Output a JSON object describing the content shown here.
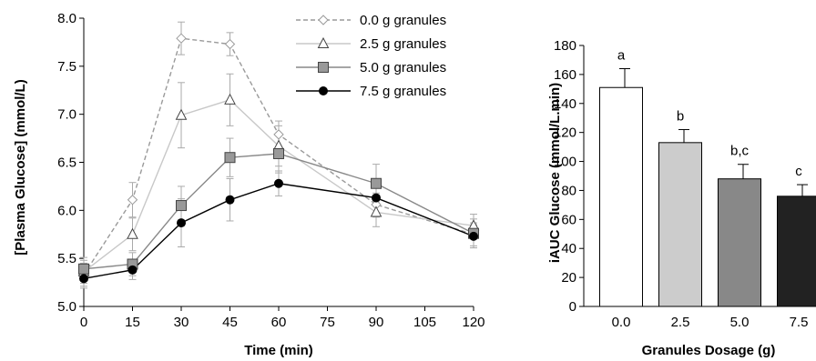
{
  "chart_data": [
    {
      "type": "line",
      "xlabel": "Time (min)",
      "ylabel": "[Plasma Glucose] (mmol/L)",
      "xlim": [
        0,
        120
      ],
      "ylim": [
        5.0,
        8.0
      ],
      "x_ticks": [
        "0",
        "15",
        "30",
        "45",
        "60",
        "75",
        "90",
        "105",
        "120"
      ],
      "y_ticks": [
        "5.0",
        "5.5",
        "6.0",
        "6.5",
        "7.0",
        "7.5",
        "8.0"
      ],
      "legend_placement": "top-right",
      "x": [
        0,
        15,
        30,
        45,
        60,
        90,
        120
      ],
      "series": [
        {
          "name": "0.0 g granules",
          "marker": "diamond-open",
          "line": "dashed",
          "color": "#999999",
          "values": [
            5.33,
            6.11,
            7.79,
            7.73,
            6.79,
            6.06,
            5.75
          ],
          "errors": [
            0.12,
            0.18,
            0.17,
            0.12,
            0.14,
            0.12,
            0.12
          ]
        },
        {
          "name": "2.5 g granules",
          "marker": "triangle-open",
          "line": "solid",
          "color": "#c8c8c8",
          "values": [
            5.36,
            5.75,
            6.99,
            7.15,
            6.67,
            5.98,
            5.84
          ],
          "errors": [
            0.12,
            0.17,
            0.34,
            0.27,
            0.21,
            0.15,
            0.12
          ]
        },
        {
          "name": "5.0 g granules",
          "marker": "square-filled",
          "line": "solid",
          "color": "#888888",
          "values": [
            5.39,
            5.44,
            6.05,
            6.55,
            6.59,
            6.28,
            5.76
          ],
          "errors": [
            0.12,
            0.12,
            0.2,
            0.2,
            0.2,
            0.2,
            0.15
          ]
        },
        {
          "name": "7.5 g granules",
          "marker": "circle-filled",
          "line": "solid",
          "color": "#000000",
          "values": [
            5.29,
            5.38,
            5.87,
            6.11,
            6.28,
            6.13,
            5.73
          ],
          "errors": [
            0.1,
            0.1,
            0.25,
            0.22,
            0.13,
            0.2,
            0.12
          ]
        }
      ]
    },
    {
      "type": "bar",
      "xlabel": "Granules Dosage (g)",
      "ylabel": "iAUC Glucose (mmol/L.min)",
      "ylim": [
        0,
        180
      ],
      "y_ticks": [
        "0",
        "20",
        "40",
        "60",
        "80",
        "100",
        "120",
        "140",
        "160",
        "180"
      ],
      "categories": [
        "0.0",
        "2.5",
        "5.0",
        "7.5"
      ],
      "values": [
        151,
        113,
        88,
        76
      ],
      "errors": [
        13,
        9,
        10,
        8
      ],
      "colors": [
        "#ffffff",
        "#cccccc",
        "#888888",
        "#222222"
      ],
      "significance_labels": [
        "a",
        "b",
        "b,c",
        "c"
      ]
    }
  ]
}
